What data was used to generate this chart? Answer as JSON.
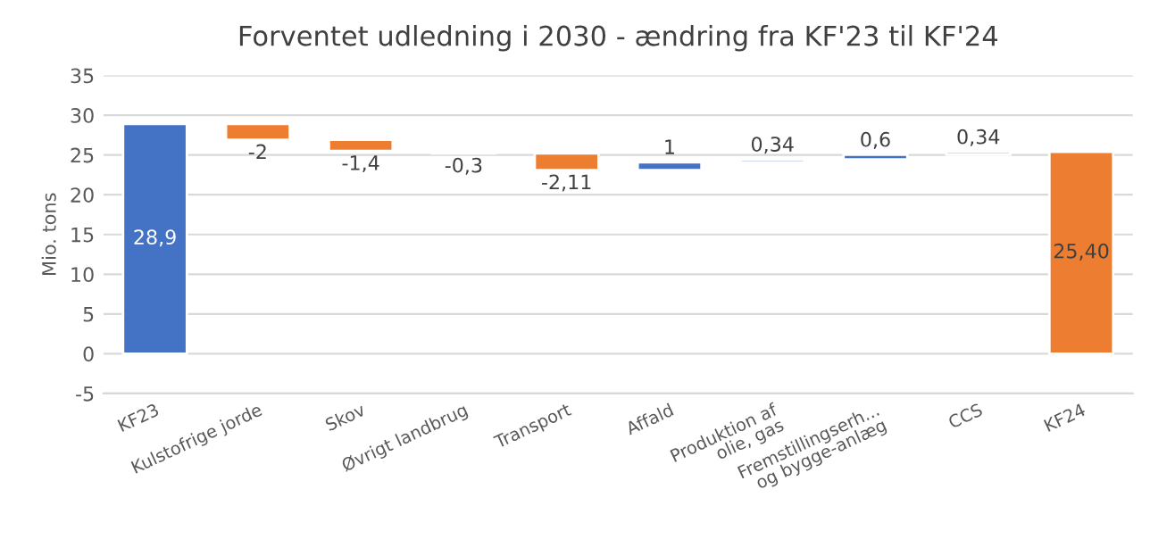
{
  "chart_data": {
    "type": "bar",
    "title": "Forventet udledning i 2030 - ændring fra KF'23 til KF'24",
    "ylabel": "Mio. tons",
    "categories": [
      "KF23",
      "Kulstofrige jorde",
      "Skov",
      "Øvrigt landbrug",
      "Transport",
      "Affald",
      "Produktion af\nolie, gas",
      "Fremstillingserh...\nog bygge-anlæg",
      "CCS",
      "KF24"
    ],
    "values": [
      28.9,
      -2,
      -1.4,
      -0.3,
      -2.11,
      1,
      0.34,
      0.6,
      0.34,
      25.4
    ],
    "base": [
      0,
      28.9,
      26.9,
      25.5,
      25.2,
      23.09,
      24.09,
      24.43,
      25.03,
      0
    ],
    "colors": [
      "#4472c4",
      "#ed7d31",
      "#ed7d31",
      "#ed7d31",
      "#ed7d31",
      "#4472c4",
      "#4472c4",
      "#4472c4",
      "#4472c4",
      "#ed7d31"
    ],
    "value_labels": [
      "28,9",
      "-2",
      "-1,4",
      "-0,3",
      "-2,11",
      "1",
      "0,34",
      "0,6",
      "0,34",
      "25,40"
    ],
    "ylim": [
      -5,
      35
    ],
    "yticks": [
      -5,
      0,
      5,
      10,
      15,
      20,
      25,
      30,
      35
    ],
    "grid": "y"
  }
}
